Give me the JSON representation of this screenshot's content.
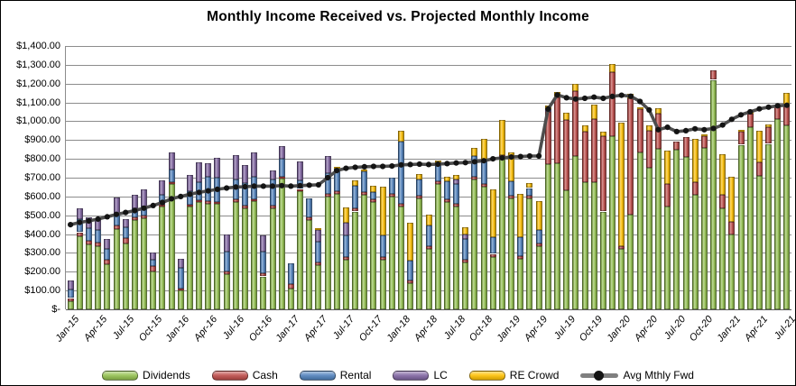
{
  "chart_data": {
    "type": "stacked-bar+line",
    "title": "Monthly Income Received vs. Projected Monthly Income",
    "ylim": [
      0,
      1400
    ],
    "grid": true,
    "legend_position": "bottom",
    "ytick_values": [
      0,
      100,
      200,
      300,
      400,
      500,
      600,
      700,
      800,
      900,
      1000,
      1100,
      1200,
      1300,
      1400
    ],
    "ytick_labels": [
      "$-",
      "$100.00",
      "$200.00",
      "$300.00",
      "$400.00",
      "$500.00",
      "$600.00",
      "$700.00",
      "$800.00",
      "$900.00",
      "$1,000.00",
      "$1,100.00",
      "$1,200.00",
      "$1,300.00",
      "$1,400.00"
    ],
    "xtick_every": 3,
    "categories": [
      "Jan-15",
      "Feb-15",
      "Mar-15",
      "Apr-15",
      "May-15",
      "Jun-15",
      "Jul-15",
      "Aug-15",
      "Sep-15",
      "Oct-15",
      "Nov-15",
      "Dec-15",
      "Jan-16",
      "Feb-16",
      "Mar-16",
      "Apr-16",
      "May-16",
      "Jun-16",
      "Jul-16",
      "Aug-16",
      "Sep-16",
      "Oct-16",
      "Nov-16",
      "Dec-16",
      "Jan-17",
      "Feb-17",
      "Mar-17",
      "Apr-17",
      "May-17",
      "Jun-17",
      "Jul-17",
      "Aug-17",
      "Sep-17",
      "Oct-17",
      "Nov-17",
      "Dec-17",
      "Jan-18",
      "Feb-18",
      "Mar-18",
      "Apr-18",
      "May-18",
      "Jun-18",
      "Jul-18",
      "Aug-18",
      "Sep-18",
      "Oct-18",
      "Nov-18",
      "Dec-18",
      "Jan-19",
      "Feb-19",
      "Mar-19",
      "Apr-19",
      "May-19",
      "Jun-19",
      "Jul-19",
      "Aug-19",
      "Sep-19",
      "Oct-19",
      "Nov-19",
      "Dec-19",
      "Jan-20",
      "Feb-20",
      "Mar-20",
      "Apr-20",
      "May-20",
      "Jun-20",
      "Jul-20",
      "Aug-20",
      "Sep-20",
      "Oct-20",
      "Nov-20",
      "Dec-20",
      "Jan-21",
      "Feb-21",
      "Mar-21",
      "Apr-21",
      "May-21",
      "Jun-21",
      "Jul-21"
    ],
    "series": [
      {
        "name": "Dividends",
        "color": "#93C14E",
        "values": [
          45,
          390,
          345,
          335,
          240,
          425,
          350,
          475,
          485,
          200,
          545,
          665,
          100,
          545,
          570,
          560,
          560,
          185,
          570,
          535,
          575,
          175,
          535,
          695,
          110,
          630,
          475,
          235,
          600,
          615,
          265,
          520,
          610,
          570,
          265,
          600,
          545,
          140,
          590,
          320,
          665,
          570,
          545,
          250,
          690,
          650,
          280,
          805,
          590,
          270,
          590,
          335,
          770,
          775,
          635,
          815,
          675,
          675,
          520,
          920,
          320,
          505,
          835,
          755,
          855,
          545,
          850,
          810,
          610,
          860,
          1220,
          535,
          400,
          875,
          970,
          710,
          880,
          1010,
          980
        ]
      },
      {
        "name": "Cash",
        "color": "#BE4B48",
        "values": [
          15,
          20,
          20,
          20,
          25,
          20,
          30,
          15,
          15,
          30,
          10,
          10,
          10,
          10,
          10,
          15,
          10,
          15,
          15,
          15,
          10,
          15,
          15,
          10,
          25,
          10,
          15,
          15,
          15,
          15,
          15,
          15,
          15,
          15,
          15,
          15,
          15,
          15,
          15,
          15,
          15,
          15,
          15,
          15,
          15,
          15,
          15,
          15,
          15,
          15,
          15,
          15,
          280,
          350,
          370,
          345,
          270,
          335,
          400,
          340,
          15,
          615,
          230,
          195,
          185,
          120,
          40,
          105,
          65,
          60,
          50,
          75,
          65,
          70,
          70,
          70,
          90,
          70,
          105
        ]
      },
      {
        "name": "Rental",
        "color": "#4F81BD",
        "values": [
          45,
          70,
          65,
          65,
          55,
          60,
          55,
          45,
          45,
          35,
          55,
          70,
          110,
          75,
          95,
          130,
          130,
          105,
          105,
          120,
          120,
          115,
          140,
          95,
          110,
          45,
          100,
          110,
          110,
          120,
          115,
          120,
          110,
          40,
          115,
          85,
          330,
          105,
          85,
          110,
          85,
          95,
          105,
          110,
          110,
          130,
          90,
          0,
          75,
          100,
          40,
          70,
          0,
          0,
          0,
          0,
          0,
          0,
          0,
          0,
          0,
          0,
          0,
          0,
          0,
          0,
          0,
          0,
          0,
          0,
          0,
          0,
          0,
          0,
          0,
          0,
          0,
          0,
          0
        ]
      },
      {
        "name": "LC",
        "color": "#8064A2",
        "values": [
          50,
          55,
          60,
          60,
          55,
          90,
          45,
          75,
          95,
          35,
          75,
          90,
          50,
          85,
          105,
          70,
          105,
          95,
          130,
          95,
          130,
          90,
          50,
          70,
          0,
          100,
          0,
          60,
          90,
          0,
          65,
          0,
          0,
          0,
          0,
          0,
          0,
          0,
          0,
          0,
          0,
          0,
          25,
          25,
          0,
          0,
          0,
          0,
          0,
          0,
          0,
          0,
          15,
          0,
          0,
          0,
          0,
          0,
          0,
          0,
          0,
          0,
          0,
          0,
          0,
          0,
          0,
          0,
          0,
          0,
          0,
          0,
          0,
          0,
          0,
          0,
          0,
          0,
          0
        ]
      },
      {
        "name": "RE Crowd",
        "color": "#FFC000",
        "values": [
          0,
          0,
          0,
          0,
          0,
          0,
          0,
          0,
          0,
          0,
          0,
          0,
          0,
          0,
          0,
          0,
          0,
          0,
          0,
          0,
          0,
          0,
          0,
          0,
          0,
          0,
          0,
          10,
          0,
          10,
          80,
          30,
          10,
          30,
          255,
          0,
          60,
          200,
          30,
          60,
          25,
          25,
          25,
          35,
          45,
          110,
          255,
          185,
          155,
          230,
          25,
          155,
          20,
          30,
          40,
          40,
          35,
          80,
          25,
          45,
          660,
          25,
          10,
          30,
          30,
          180,
          0,
          0,
          230,
          10,
          0,
          215,
          240,
          10,
          10,
          170,
          15,
          10,
          65
        ]
      }
    ],
    "line_series": {
      "name": "Avg Mthly Fwd",
      "line_color": "#4D4D4D",
      "marker_color": "#141414",
      "values": [
        450,
        462,
        470,
        480,
        492,
        505,
        515,
        525,
        538,
        552,
        568,
        588,
        600,
        612,
        622,
        630,
        638,
        645,
        650,
        652,
        655,
        655,
        655,
        658,
        655,
        658,
        660,
        662,
        700,
        738,
        750,
        755,
        758,
        760,
        760,
        762,
        768,
        770,
        772,
        770,
        772,
        775,
        778,
        780,
        785,
        790,
        800,
        805,
        810,
        812,
        815,
        815,
        1065,
        1140,
        1125,
        1118,
        1122,
        1128,
        1122,
        1132,
        1138,
        1133,
        1105,
        1060,
        955,
        968,
        945,
        950,
        960,
        955,
        962,
        980,
        1010,
        1034,
        1050,
        1066,
        1075,
        1082,
        1085
      ]
    }
  }
}
